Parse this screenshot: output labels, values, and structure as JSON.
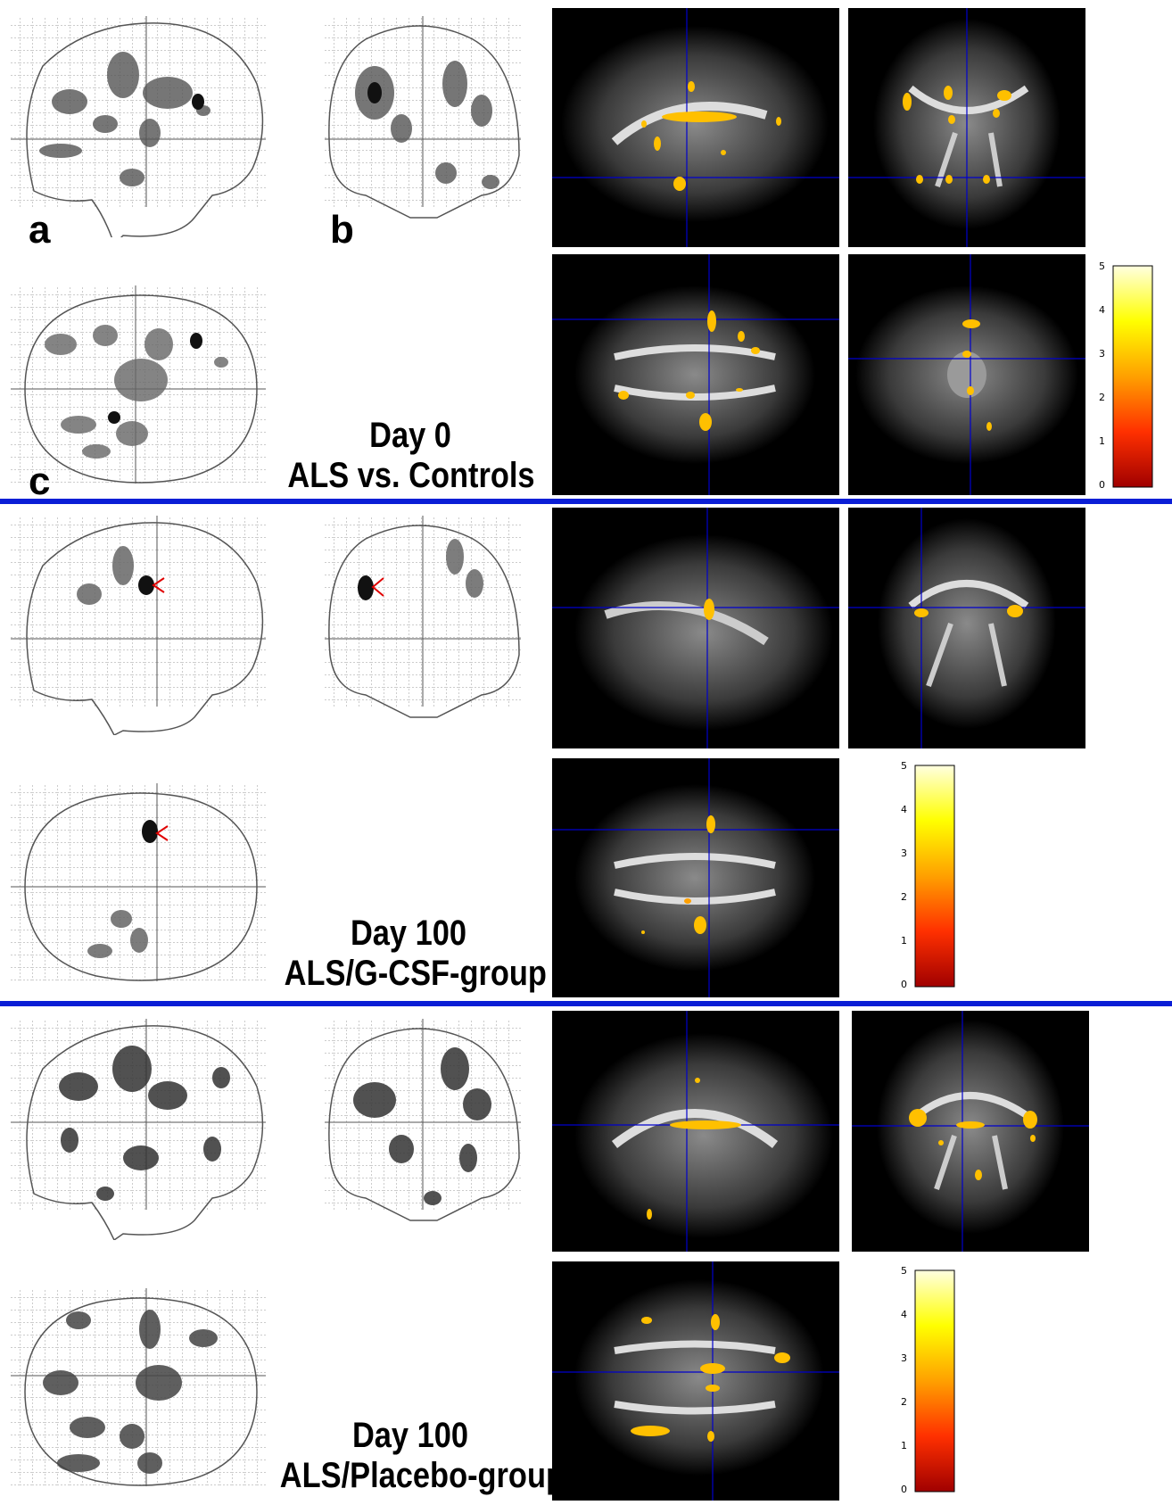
{
  "panels": {
    "a": "a",
    "b": "b",
    "c": "c"
  },
  "groups": [
    {
      "day": "Day 0",
      "comparison": "ALS vs. Controls"
    },
    {
      "day": "Day 100",
      "comparison": "ALS/G-CSF-group"
    },
    {
      "day": "Day 100",
      "comparison": "ALS/Placebo-group"
    }
  ],
  "colorbar": {
    "ticks": [
      "0",
      "1",
      "2",
      "3",
      "4",
      "5"
    ],
    "colors": [
      "#a00000",
      "#ff3000",
      "#ffa000",
      "#ffff00",
      "#ffffe0"
    ]
  },
  "divider_color": "#0a1ed6"
}
